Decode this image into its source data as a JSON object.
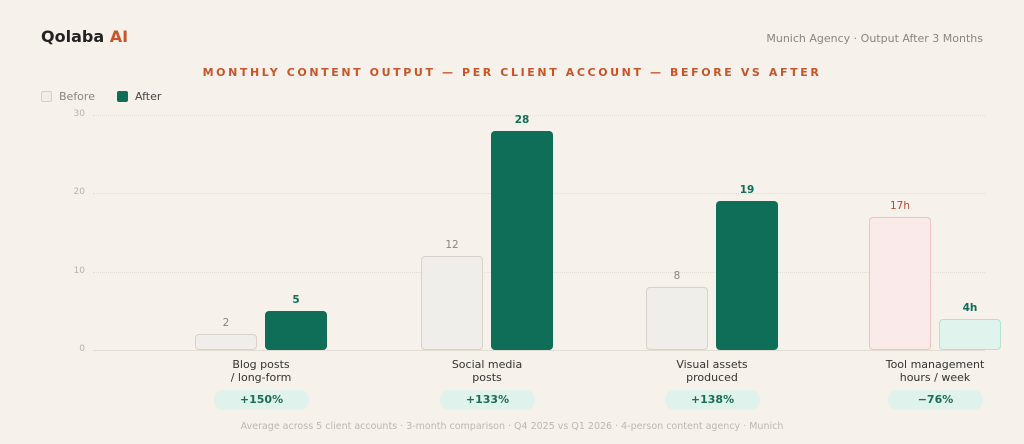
{
  "header": {
    "brand_main": "Qolaba",
    "brand_accent": "AI",
    "subtitle": "Munich Agency · Output After 3 Months"
  },
  "legend": {
    "before": "Before",
    "after": "After"
  },
  "footnote": "Average across 5 client accounts · 3-month comparison · Q4 2025 vs Q1 2026 · 4-person content agency · Munich",
  "colors": {
    "accent": "#c9542a",
    "after": "#0f6e57",
    "before_fill": "#efeeea",
    "before_border": "#d8d2ca",
    "hours_before_fill": "#fbeaea",
    "hours_after_fill": "#e0f3ec",
    "pill_bg": "#dff2eb",
    "background": "#f6f1ea"
  },
  "chart_data": {
    "type": "bar",
    "title": "MONTHLY CONTENT OUTPUT — PER CLIENT ACCOUNT — BEFORE VS AFTER",
    "xlabel": "",
    "ylabel": "",
    "ylim": [
      0,
      30
    ],
    "yticks": [
      "0",
      "10",
      "20",
      "30"
    ],
    "grid": true,
    "legend_position": "top-left",
    "categories": [
      "Blog posts / long-form",
      "Social media posts",
      "Visual assets produced",
      "Tool management hours / week"
    ],
    "category_lines": [
      [
        "Blog posts",
        "/ long-form"
      ],
      [
        "Social media",
        "posts"
      ],
      [
        "Visual assets",
        "produced"
      ],
      [
        "Tool management",
        "hours / week"
      ]
    ],
    "series": [
      {
        "name": "Before",
        "values": [
          2,
          12,
          8,
          17
        ],
        "labels": [
          "2",
          "12",
          "8",
          "17h"
        ]
      },
      {
        "name": "After",
        "values": [
          5,
          28,
          19,
          4
        ],
        "labels": [
          "5",
          "28",
          "19",
          "4h"
        ]
      }
    ],
    "changes": [
      "+150%",
      "+133%",
      "+138%",
      "−76%"
    ]
  }
}
